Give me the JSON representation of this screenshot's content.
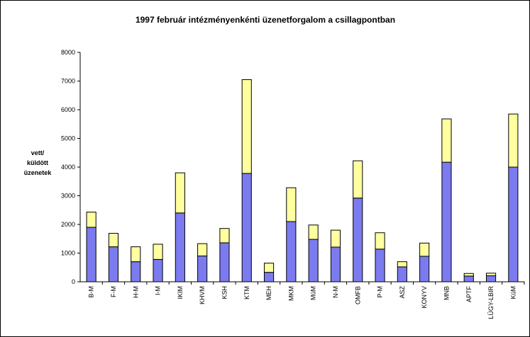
{
  "chart_data": {
    "type": "bar",
    "stacked": true,
    "title": "1997 február intézményenkénti üzenetforgalom a csillagpontban",
    "ylabel_lines": [
      "vett/",
      "küldött",
      "üzenetek"
    ],
    "ylim": [
      0,
      8000
    ],
    "ytick_step": 1000,
    "grid": false,
    "legend": "none",
    "categories": [
      "B-M",
      "F-M",
      "H-M",
      "I-M",
      "IKIM",
      "KHVM",
      "KSH",
      "KTM",
      "MEH",
      "MKM",
      "MüM",
      "N-M",
      "OMFB",
      "P-M",
      "ASZ",
      "KONYV",
      "MNB",
      "APTF",
      "LÜGY-LBIR",
      "KüM"
    ],
    "series": [
      {
        "color": "#7b7bef",
        "values": [
          1900,
          1220,
          700,
          780,
          2400,
          900,
          1360,
          3780,
          330,
          2100,
          1480,
          1210,
          2920,
          1140,
          520,
          890,
          4170,
          200,
          210,
          4000
        ]
      },
      {
        "color": "#ffffa0",
        "values": [
          530,
          470,
          520,
          530,
          1400,
          430,
          500,
          3270,
          320,
          1180,
          500,
          590,
          1300,
          570,
          180,
          460,
          1510,
          90,
          90,
          1850
        ]
      }
    ]
  }
}
